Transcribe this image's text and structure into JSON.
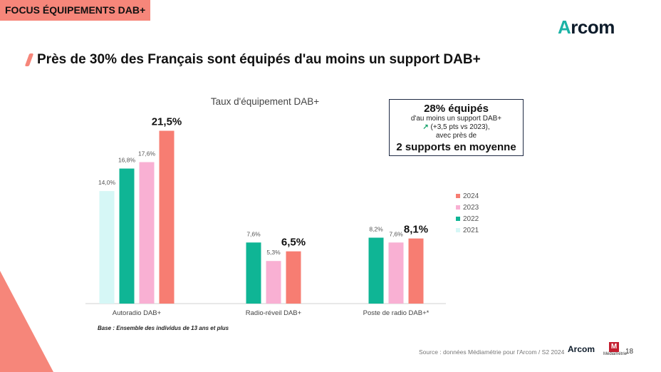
{
  "tag": "FOCUS ÉQUIPEMENTS DAB+",
  "logo": {
    "text_a": "A",
    "text_rest": "rcom"
  },
  "headline": "Près de 30% des Français sont équipés d'au moins un support DAB+",
  "callout": {
    "line1": "28% équipés",
    "line2": "d'au moins un support DAB+",
    "line3": "(+3,5 pts vs 2023),",
    "line4": "avec près de",
    "line5": "2 supports en moyenne"
  },
  "base_note": "Base : Ensemble des individus de 13 ans et plus",
  "source": "Source : données Médiamétrie pour l'Arcom / S2 2024",
  "footer": {
    "arcom": "Arcom",
    "mediametrie": "Médiamétrie",
    "page": "18"
  },
  "colors": {
    "2021": "#d6f7f6",
    "2022": "#0fb595",
    "2023": "#f9b0d3",
    "2024": "#f77d72",
    "accent": "#f6867a"
  },
  "chart_data": {
    "type": "bar",
    "title": "Taux d'équipement DAB+",
    "categories": [
      "Autoradio DAB+",
      "Radio-réveil DAB+",
      "Poste de radio DAB+*"
    ],
    "series": [
      {
        "name": "2021",
        "values": [
          14.0,
          null,
          null
        ],
        "labels": [
          "14,0%",
          "",
          ""
        ]
      },
      {
        "name": "2022",
        "values": [
          16.8,
          7.6,
          8.2
        ],
        "labels": [
          "16,8%",
          "7,6%",
          "8,2%"
        ]
      },
      {
        "name": "2023",
        "values": [
          17.6,
          5.3,
          7.6
        ],
        "labels": [
          "17,6%",
          "5,3%",
          "7,6%"
        ]
      },
      {
        "name": "2024",
        "values": [
          21.5,
          6.5,
          8.1
        ],
        "labels": [
          "21,5%",
          "6,5%",
          "8,1%"
        ]
      }
    ],
    "legend_order": [
      "2024",
      "2023",
      "2022",
      "2021"
    ],
    "legend_position": "right",
    "ylim": [
      0,
      25
    ],
    "grid": false
  }
}
